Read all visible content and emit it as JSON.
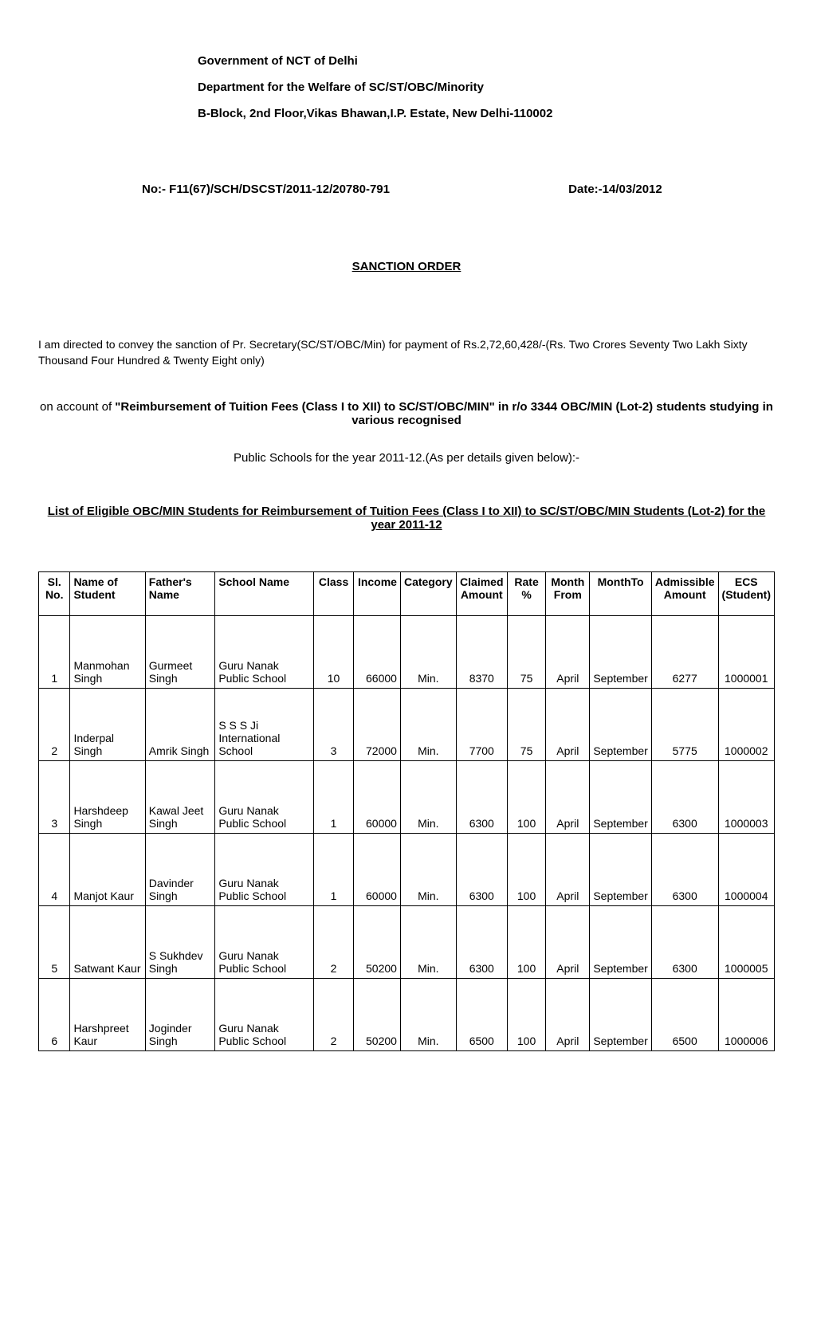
{
  "header": {
    "line1": "Government of NCT of Delhi",
    "line2": "Department for the Welfare of SC/ST/OBC/Minority",
    "line3": "B-Block, 2nd Floor,Vikas Bhawan,I.P. Estate, New Delhi-110002"
  },
  "ref": {
    "no": "No:- F11(67)/SCH/DSCST/2011-12/20780-791",
    "date": "Date:-14/03/2012"
  },
  "order_title": "SANCTION ORDER",
  "para1": "I am directed to convey the sanction of Pr. Secretary(SC/ST/OBC/Min) for payment of Rs.2,72,60,428/-(Rs. Two Crores Seventy Two Lakh Sixty Thousand Four Hundred & Twenty Eight only)",
  "para2_lead": "on account of  ",
  "para2_bold": "\"Reimbursement  of Tuition Fees (Class I to XII) to SC/ST/OBC/MIN\" in r/o 3344 OBC/MIN (Lot-2) students studying in various recognised",
  "para3": "Public Schools  for the year 2011-12.(As per details given below):-",
  "list_title": "List of Eligible OBC/MIN Students for Reimbursement  of Tuition Fees (Class I to XII) to SC/ST/OBC/MIN Students (Lot-2) for the year 2011-12",
  "columns": {
    "sl": "Sl. No.",
    "name": "Name of Student",
    "father": "Father's Name",
    "school": "School Name",
    "class": "Class",
    "income": "Income",
    "category": "Category",
    "claimed": "Claimed Amount",
    "rate": "Rate %",
    "mfrom": "Month From",
    "mto": "MonthTo",
    "admissible": "Admissible Amount",
    "ecs": "ECS (Student)"
  },
  "rows": [
    {
      "sl": "1",
      "name": "Manmohan Singh",
      "father": "Gurmeet Singh",
      "school": "Guru Nanak Public School",
      "class": "10",
      "income": "66000",
      "category": "Min.",
      "claimed": "8370",
      "rate": "75",
      "mfrom": "April",
      "mto": "September",
      "admissible": "6277",
      "ecs": "1000001"
    },
    {
      "sl": "2",
      "name": "Inderpal Singh",
      "father": "Amrik Singh",
      "school": "S S S Ji International School",
      "class": "3",
      "income": "72000",
      "category": "Min.",
      "claimed": "7700",
      "rate": "75",
      "mfrom": "April",
      "mto": "September",
      "admissible": "5775",
      "ecs": "1000002"
    },
    {
      "sl": "3",
      "name": "Harshdeep Singh",
      "father": "Kawal Jeet Singh",
      "school": "Guru Nanak Public School",
      "class": "1",
      "income": "60000",
      "category": "Min.",
      "claimed": "6300",
      "rate": "100",
      "mfrom": "April",
      "mto": "September",
      "admissible": "6300",
      "ecs": "1000003"
    },
    {
      "sl": "4",
      "name": "Manjot Kaur",
      "father": "Davinder Singh",
      "school": "Guru Nanak Public School",
      "class": "1",
      "income": "60000",
      "category": "Min.",
      "claimed": "6300",
      "rate": "100",
      "mfrom": "April",
      "mto": "September",
      "admissible": "6300",
      "ecs": "1000004"
    },
    {
      "sl": "5",
      "name": "Satwant Kaur",
      "father": "S Sukhdev Singh",
      "school": "Guru Nanak Public School",
      "class": "2",
      "income": "50200",
      "category": "Min.",
      "claimed": "6300",
      "rate": "100",
      "mfrom": "April",
      "mto": "September",
      "admissible": "6300",
      "ecs": "1000005"
    },
    {
      "sl": "6",
      "name": "Harshpreet Kaur",
      "father": "Joginder Singh",
      "school": "Guru Nanak Public School",
      "class": "2",
      "income": "50200",
      "category": "Min.",
      "claimed": "6500",
      "rate": "100",
      "mfrom": "April",
      "mto": "September",
      "admissible": "6500",
      "ecs": "1000006"
    }
  ]
}
